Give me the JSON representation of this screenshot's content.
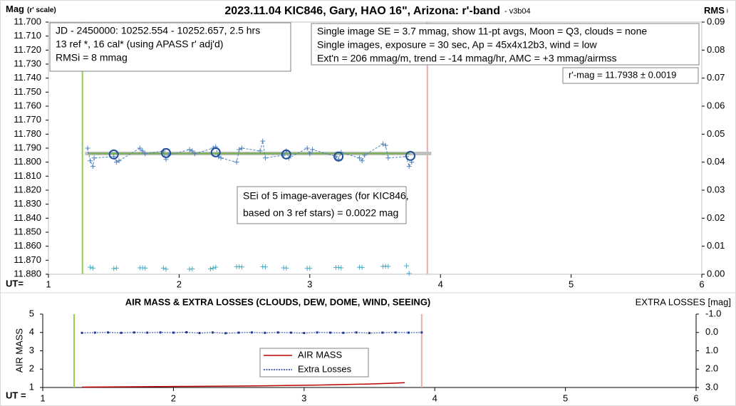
{
  "chart_data": [
    {
      "type": "line",
      "title": "2023.11.04 KIC846, Gary, HAO 16\", Arizona: r'-band",
      "subtitle": "- v3b04",
      "y_label": "Mag",
      "y_label_note": "(r' scale)",
      "y2_label": "RMS",
      "y2_label_note": "i",
      "x_label": "UT=",
      "xlim": [
        1,
        6
      ],
      "xticks": [
        1,
        2,
        3,
        4,
        5,
        6
      ],
      "ylim": [
        11.88,
        11.7
      ],
      "yticks": [
        {
          "value": 11.7,
          "label": "11.700"
        },
        {
          "value": 11.71,
          "label": "11.710"
        },
        {
          "value": 11.72,
          "label": "11.720"
        },
        {
          "value": 11.73,
          "label": "11.730"
        },
        {
          "value": 11.74,
          "label": "11.740"
        },
        {
          "value": 11.75,
          "label": "11.750"
        },
        {
          "value": 11.76,
          "label": "11.760"
        },
        {
          "value": 11.77,
          "label": "11.770"
        },
        {
          "value": 11.78,
          "label": "11.780"
        },
        {
          "value": 11.79,
          "label": "11.790"
        },
        {
          "value": 11.8,
          "label": "11.800"
        },
        {
          "value": 11.81,
          "label": "11.810"
        },
        {
          "value": 11.82,
          "label": "11.820"
        },
        {
          "value": 11.83,
          "label": "11.830"
        },
        {
          "value": 11.84,
          "label": "11.840"
        },
        {
          "value": 11.85,
          "label": "11.850"
        },
        {
          "value": 11.86,
          "label": "11.860"
        },
        {
          "value": 11.87,
          "label": "11.870"
        },
        {
          "value": 11.88,
          "label": "11.880"
        }
      ],
      "y2lim": [
        0,
        0.09
      ],
      "y2ticks": [
        {
          "value": 0,
          "label": "0.00"
        },
        0.01,
        0.02,
        0.03,
        0.04,
        0.05,
        0.06,
        0.07,
        0.08,
        0.09
      ],
      "grid": false,
      "vlines": [
        {
          "value": 1.26,
          "color": "#92d050"
        },
        {
          "value": 3.9,
          "color": "#f4aaaa"
        }
      ],
      "mean": {
        "label": "r'-mag = 11.7938 ± 0.0019",
        "value": 11.7938,
        "x": [
          1.28,
          3.93
        ]
      },
      "text_boxes": [
        {
          "lines": [
            "JD - 2450000: 10252.554 - 10252.657, 2.5 hrs",
            "13 ref *, 16 cal* (using APASS r' adj'd)",
            "RMSi = 8 mmag"
          ]
        },
        {
          "lines": [
            "Single image SE = 3.7 mmag, show  11-pt avgs, Moon = Q3, clouds = none",
            "Single images, exposure = 30 sec, Ap = 45x4x12b3, wind = low",
            "Ext'n = 206 mmag/m, trend = -14  mmag/hr, AMC = +3 mmag/airmss"
          ]
        },
        {
          "lines": [
            "SEi of 5 image-averages (for KIC846,",
            "based on 3 ref stars) = 0.0022 mag"
          ]
        }
      ],
      "series": [
        {
          "color": "#4f81bd",
          "marker": "plus",
          "line": "dashed",
          "x": [
            1.3,
            1.32,
            1.34,
            1.35,
            1.5,
            1.52,
            1.54,
            1.7,
            1.72,
            1.74,
            1.88,
            1.9,
            1.92,
            2.08,
            2.1,
            2.12,
            2.26,
            2.28,
            2.3,
            2.32,
            2.44,
            2.46,
            2.48,
            2.62,
            2.64,
            2.66,
            2.8,
            2.82,
            2.84,
            2.98,
            3.0,
            3.02,
            3.2,
            3.22,
            3.24,
            3.38,
            3.4,
            3.42,
            3.56,
            3.58,
            3.6,
            3.74,
            3.76,
            3.78
          ],
          "values": [
            11.79,
            11.799,
            11.803,
            11.797,
            11.796,
            11.8,
            11.799,
            11.79,
            11.792,
            11.794,
            11.792,
            11.798,
            11.795,
            11.791,
            11.792,
            11.794,
            11.79,
            11.789,
            11.796,
            11.797,
            11.8,
            11.791,
            11.79,
            11.792,
            11.785,
            11.797,
            11.795,
            11.792,
            11.797,
            11.79,
            11.794,
            11.791,
            11.796,
            11.798,
            11.793,
            11.797,
            11.799,
            11.795,
            11.787,
            11.788,
            11.797,
            11.796,
            11.803,
            11.8
          ]
        },
        {
          "color": "#1f4e9c",
          "marker": "circle",
          "line": "none",
          "x": [
            1.5,
            1.9,
            2.28,
            2.82,
            3.22,
            3.77
          ],
          "values": [
            11.7945,
            11.7935,
            11.793,
            11.7945,
            11.796,
            11.7955
          ]
        },
        {
          "color": "#4bacc6",
          "marker": "plus",
          "line": "none",
          "axis": "y2",
          "x": [
            1.32,
            1.34,
            1.5,
            1.52,
            1.7,
            1.72,
            1.74,
            1.88,
            1.9,
            2.08,
            2.1,
            2.24,
            2.26,
            2.28,
            2.44,
            2.46,
            2.48,
            2.64,
            2.66,
            2.8,
            2.82,
            2.98,
            3.0,
            3.2,
            3.22,
            3.24,
            3.38,
            3.4,
            3.56,
            3.58,
            3.6,
            3.74,
            3.76
          ],
          "values": [
            0.0025,
            0.0022,
            0.002,
            0.0022,
            0.0023,
            0.0023,
            0.0022,
            0.0022,
            0.0018,
            0.0018,
            0.0019,
            0.0019,
            0.0022,
            0.0025,
            0.0027,
            0.0027,
            0.0026,
            0.0027,
            0.0026,
            0.0023,
            0.0022,
            0.0021,
            0.0021,
            0.0024,
            0.0024,
            0.0023,
            0.0025,
            0.0024,
            0.0028,
            0.0029,
            0.0028,
            0.003,
            0.0003
          ]
        }
      ]
    },
    {
      "type": "line",
      "title": "AIR MASS & EXTRA LOSSES (CLOUDS, DEW, DOME, WIND, SEEING)",
      "y_label": "AIR MASS",
      "y2_label": "EXTRA LOSSES [mag]",
      "x_label": "UT =",
      "xlim": [
        1,
        6
      ],
      "xticks": [
        1,
        2,
        3,
        4,
        5,
        6
      ],
      "ylim": [
        1,
        5
      ],
      "yticks": [
        1,
        2,
        3,
        4,
        5
      ],
      "y2lim": [
        3,
        -1
      ],
      "y2ticks": [
        {
          "value": -1,
          "label": "-1.0"
        },
        {
          "value": 0,
          "label": "0.0"
        },
        {
          "value": 1,
          "label": "1.0"
        },
        {
          "value": 2,
          "label": "2.0"
        },
        {
          "value": 3,
          "label": "3.0"
        }
      ],
      "grid": false,
      "vlines": [
        {
          "value": 1.24,
          "color": "#92d050"
        },
        {
          "value": 3.9,
          "color": "#f4aaaa"
        }
      ],
      "series": [
        {
          "name": "AIR MASS",
          "color": "#c00000",
          "marker": "none",
          "line": "solid",
          "x": [
            1.3,
            1.5,
            1.7,
            1.9,
            2.1,
            2.3,
            2.5,
            2.7,
            2.9,
            3.1,
            3.3,
            3.5,
            3.7,
            3.77
          ],
          "values": [
            1.02,
            1.03,
            1.04,
            1.05,
            1.06,
            1.07,
            1.08,
            1.09,
            1.11,
            1.13,
            1.16,
            1.19,
            1.24,
            1.26
          ]
        },
        {
          "name": "Extra Losses",
          "color": "#1f3a93",
          "marker": "dot",
          "line": "dotted",
          "axis": "y2",
          "x": [
            1.3,
            1.4,
            1.5,
            1.6,
            1.7,
            1.8,
            1.9,
            2.0,
            2.1,
            2.2,
            2.3,
            2.4,
            2.5,
            2.6,
            2.7,
            2.8,
            2.9,
            3.0,
            3.1,
            3.2,
            3.3,
            3.4,
            3.5,
            3.6,
            3.7,
            3.8,
            3.9
          ],
          "values": [
            0.02,
            0.01,
            0.0,
            0.02,
            0.0,
            0.01,
            0.0,
            0.01,
            -0.01,
            0.03,
            0.0,
            0.04,
            0.01,
            0.0,
            0.02,
            0.0,
            0.01,
            0.03,
            0.0,
            0.01,
            0.02,
            0.0,
            0.03,
            0.01,
            0.0,
            0.01,
            0.0
          ]
        }
      ]
    }
  ]
}
